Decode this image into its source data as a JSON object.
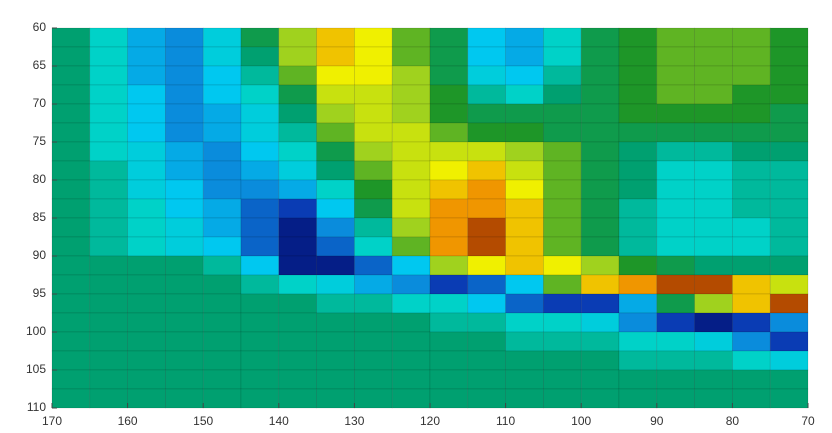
{
  "chart_data": {
    "type": "heatmap",
    "xbins": [
      170,
      165,
      160,
      155,
      150,
      145,
      140,
      135,
      130,
      125,
      120,
      115,
      110,
      105,
      100,
      95,
      90,
      85,
      80,
      75,
      70
    ],
    "ybins": [
      60,
      62.5,
      65,
      67.5,
      70,
      72.5,
      75,
      77.5,
      80,
      82.5,
      85,
      87.5,
      90,
      92.5,
      95,
      97.5,
      100,
      102.5,
      105,
      107.5,
      110
    ],
    "values": [
      [
        0,
        -0.2,
        -0.5,
        -0.6,
        -0.3,
        0.1,
        0.4,
        0.7,
        0.6,
        0.3,
        0.1,
        -0.4,
        -0.5,
        -0.2,
        0.1,
        0.2,
        0.3,
        0.3,
        0.3,
        0.2
      ],
      [
        0,
        -0.2,
        -0.5,
        -0.6,
        -0.3,
        0,
        0.4,
        0.7,
        0.6,
        0.3,
        0.1,
        -0.4,
        -0.5,
        -0.2,
        0.1,
        0.2,
        0.3,
        0.3,
        0.3,
        0.2
      ],
      [
        0,
        -0.2,
        -0.5,
        -0.6,
        -0.4,
        -0.1,
        0.3,
        0.6,
        0.6,
        0.4,
        0.1,
        -0.3,
        -0.4,
        -0.1,
        0.1,
        0.2,
        0.3,
        0.3,
        0.3,
        0.2
      ],
      [
        0,
        -0.2,
        -0.4,
        -0.6,
        -0.4,
        -0.2,
        0.1,
        0.5,
        0.5,
        0.4,
        0.2,
        -0.1,
        -0.2,
        0,
        0.1,
        0.2,
        0.3,
        0.3,
        0.2,
        0.2
      ],
      [
        0,
        -0.2,
        -0.4,
        -0.6,
        -0.5,
        -0.3,
        0,
        0.4,
        0.5,
        0.4,
        0.2,
        0.1,
        0.1,
        0.1,
        0.1,
        0.2,
        0.2,
        0.2,
        0.2,
        0.1
      ],
      [
        0,
        -0.2,
        -0.4,
        -0.6,
        -0.5,
        -0.3,
        -0.1,
        0.3,
        0.5,
        0.5,
        0.3,
        0.2,
        0.2,
        0.1,
        0.1,
        0.1,
        0.1,
        0.1,
        0.1,
        0.1
      ],
      [
        0,
        -0.2,
        -0.3,
        -0.5,
        -0.6,
        -0.4,
        -0.2,
        0.1,
        0.4,
        0.5,
        0.5,
        0.5,
        0.4,
        0.3,
        0.1,
        0,
        -0.1,
        -0.1,
        0,
        0
      ],
      [
        0,
        -0.1,
        -0.3,
        -0.5,
        -0.6,
        -0.5,
        -0.3,
        0,
        0.3,
        0.5,
        0.6,
        0.7,
        0.5,
        0.3,
        0.1,
        0,
        -0.2,
        -0.2,
        -0.1,
        -0.1
      ],
      [
        0,
        -0.1,
        -0.3,
        -0.4,
        -0.6,
        -0.6,
        -0.5,
        -0.2,
        0.2,
        0.5,
        0.7,
        0.8,
        0.6,
        0.3,
        0.1,
        0,
        -0.2,
        -0.2,
        -0.1,
        -0.1
      ],
      [
        0,
        -0.1,
        -0.2,
        -0.4,
        -0.5,
        -0.7,
        -0.8,
        -0.4,
        0.1,
        0.5,
        0.8,
        0.8,
        0.7,
        0.3,
        0.1,
        -0.1,
        -0.2,
        -0.2,
        -0.1,
        -0.1
      ],
      [
        0,
        -0.1,
        -0.2,
        -0.3,
        -0.5,
        -0.7,
        -0.9,
        -0.6,
        -0.1,
        0.4,
        0.8,
        0.9,
        0.7,
        0.3,
        0.1,
        -0.1,
        -0.2,
        -0.2,
        -0.2,
        -0.1
      ],
      [
        0,
        -0.1,
        -0.2,
        -0.3,
        -0.4,
        -0.7,
        -0.9,
        -0.7,
        -0.2,
        0.3,
        0.8,
        0.9,
        0.7,
        0.3,
        0.1,
        -0.1,
        -0.2,
        -0.2,
        -0.2,
        -0.1
      ],
      [
        0,
        0,
        0,
        0,
        -0.1,
        -0.4,
        -0.9,
        -0.9,
        -0.7,
        -0.4,
        0.4,
        0.6,
        0.7,
        0.6,
        0.4,
        0.2,
        0.1,
        0,
        0,
        0
      ],
      [
        0,
        0,
        0,
        0,
        0,
        -0.1,
        -0.2,
        -0.3,
        -0.5,
        -0.6,
        -0.8,
        -0.7,
        -0.4,
        0.3,
        0.7,
        0.8,
        0.9,
        0.9,
        0.7,
        0.5
      ],
      [
        0,
        0,
        0,
        0,
        0,
        0,
        0,
        -0.1,
        -0.1,
        -0.2,
        -0.2,
        -0.4,
        -0.7,
        -0.8,
        -0.8,
        -0.5,
        0.1,
        0.4,
        0.7,
        0.9
      ],
      [
        0,
        0,
        0,
        0,
        0,
        0,
        0,
        0,
        0,
        0,
        -0.1,
        -0.1,
        -0.2,
        -0.2,
        -0.3,
        -0.6,
        -0.8,
        -0.9,
        -0.8,
        -0.6
      ],
      [
        0,
        0,
        0,
        0,
        0,
        0,
        0,
        0,
        0,
        0,
        0,
        0,
        -0.1,
        -0.1,
        -0.1,
        -0.2,
        -0.2,
        -0.3,
        -0.6,
        -0.8
      ],
      [
        0,
        0,
        0,
        0,
        0,
        0,
        0,
        0,
        0,
        0,
        0,
        0,
        0,
        0,
        0,
        -0.1,
        -0.1,
        -0.1,
        -0.2,
        -0.3
      ],
      [
        0,
        0,
        0,
        0,
        0,
        0,
        0,
        0,
        0,
        0,
        0,
        0,
        0,
        0,
        0,
        0,
        0,
        0,
        0,
        0
      ],
      [
        0,
        0,
        0,
        0,
        0,
        0,
        0,
        0,
        0,
        0,
        0,
        0,
        0,
        0,
        0,
        0,
        0,
        0,
        0,
        0
      ]
    ],
    "colormap": [
      "#00005a",
      "#0a3cb4",
      "#0a8cdc",
      "#00c8f0",
      "#00d2c8",
      "#00a070",
      "#1e9628",
      "#a0d21e",
      "#f0f000",
      "#f09600",
      "#780000"
    ],
    "clim": [
      -1,
      1
    ],
    "xlim": [
      170,
      70
    ],
    "ylim": [
      60,
      110
    ],
    "yreverse": true,
    "xticks": [
      170,
      160,
      150,
      140,
      130,
      120,
      110,
      100,
      90,
      80,
      70
    ],
    "yticks": [
      60,
      65,
      70,
      75,
      80,
      85,
      90,
      95,
      100,
      105,
      110
    ]
  }
}
